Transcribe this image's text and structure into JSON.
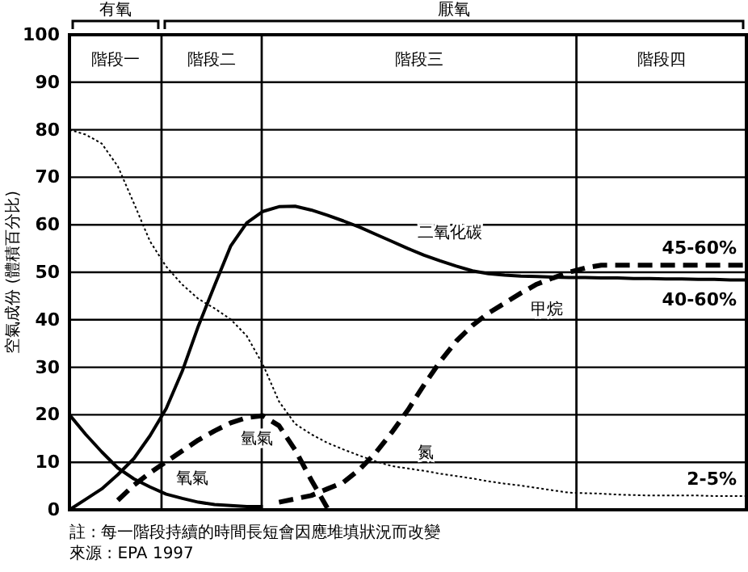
{
  "chart_data": {
    "type": "line",
    "ylabel": "空氣成份 (體積百分比)",
    "categories": [
      null,
      null,
      null,
      null,
      null,
      null,
      null,
      null,
      null,
      null,
      null,
      null,
      null,
      null,
      null,
      null,
      null,
      null,
      null,
      null,
      null,
      null,
      null,
      null,
      null,
      null,
      null,
      null,
      null,
      null,
      null,
      null,
      null,
      null,
      null,
      null,
      null,
      null,
      null,
      null,
      null,
      null,
      null
    ],
    "ylim": [
      0,
      100
    ],
    "yticks": [
      0,
      10,
      20,
      30,
      40,
      50,
      60,
      70,
      80,
      90,
      100
    ],
    "grid": "y",
    "tick_labels": "y",
    "series": [
      {
        "name": "二氧化碳",
        "color": "#000000",
        "line_style": "solid",
        "values": [
          0,
          2.2,
          4.4,
          7.4,
          10.8,
          15.6,
          21.3,
          29.2,
          38.7,
          47.2,
          55.5,
          60.4,
          62.8,
          63.8,
          63.9,
          63.1,
          62,
          60.8,
          59.5,
          58,
          56.5,
          55,
          53.6,
          52.4,
          51.3,
          50.3,
          49.7,
          49.4,
          49.2,
          49.1,
          49,
          48.9,
          48.9,
          48.8,
          48.8,
          48.7,
          48.7,
          48.6,
          48.6,
          48.5,
          48.5,
          48.4,
          48.4
        ]
      },
      {
        "name": "甲烷",
        "color": "#000000",
        "line_style": "dashed",
        "values": [
          null,
          null,
          null,
          null,
          null,
          null,
          null,
          null,
          null,
          null,
          null,
          null,
          null,
          1.6,
          2.3,
          3,
          4.4,
          5.8,
          8.5,
          12,
          16.3,
          21,
          26.3,
          31.2,
          35.5,
          38.8,
          41.4,
          43.5,
          45.6,
          47.5,
          48.8,
          50,
          50.9,
          51.5,
          51.5,
          51.5,
          51.5,
          51.5,
          51.5,
          51.5,
          51.5,
          51.5,
          51.5
        ]
      },
      {
        "name": "氮",
        "color": "#000000",
        "line_style": "dotted",
        "values": [
          80,
          79,
          77.1,
          72.3,
          64.5,
          56.5,
          51.2,
          47.4,
          44.4,
          42.4,
          40.1,
          36.6,
          30.6,
          22.8,
          18.1,
          15.9,
          14.1,
          12.7,
          11.4,
          10.2,
          9.2,
          8.7,
          8.2,
          7.6,
          7.1,
          6.6,
          6,
          5.5,
          5.1,
          4.6,
          4.1,
          3.6,
          3.5,
          3.4,
          3.2,
          3.1,
          3,
          3,
          3,
          3,
          2.9,
          2.9,
          2.9
        ]
      },
      {
        "name": "氫氣",
        "color": "#000000",
        "line_style": "dashed",
        "values": [
          null,
          null,
          null,
          2,
          5.2,
          7.8,
          10.1,
          12.4,
          14.7,
          16.6,
          18.3,
          19.4,
          19.8,
          17.7,
          12.6,
          6.3,
          0.4,
          null,
          null,
          null,
          null,
          null,
          null,
          null,
          null,
          null,
          null,
          null,
          null,
          null,
          null,
          null,
          null,
          null,
          null,
          null,
          null,
          null,
          null,
          null,
          null,
          null,
          null
        ]
      },
      {
        "name": "氧氣",
        "color": "#000000",
        "line_style": "solid",
        "values": [
          20,
          15.9,
          12.2,
          8.8,
          6.5,
          4.8,
          3.3,
          2.4,
          1.6,
          1.1,
          0.9,
          0.7,
          0.7,
          null,
          null,
          null,
          null,
          null,
          null,
          null,
          null,
          null,
          null,
          null,
          null,
          null,
          null,
          null,
          null,
          null,
          null,
          null,
          null,
          null,
          null,
          null,
          null,
          null,
          null,
          null,
          null,
          null,
          null
        ]
      }
    ],
    "annotations": [
      {
        "text": "45-60%",
        "y": 51.5
      },
      {
        "text": "40-60%",
        "y": 48.4
      },
      {
        "text": "2-5%",
        "y": 2.9
      },
      "有氧",
      "厭氧",
      "階段一",
      "階段二",
      "階段三",
      "階段四",
      "註 : 每一階段持續的時間長短會因應堆填狀況而改變",
      "來源 : EPA 1997"
    ]
  }
}
